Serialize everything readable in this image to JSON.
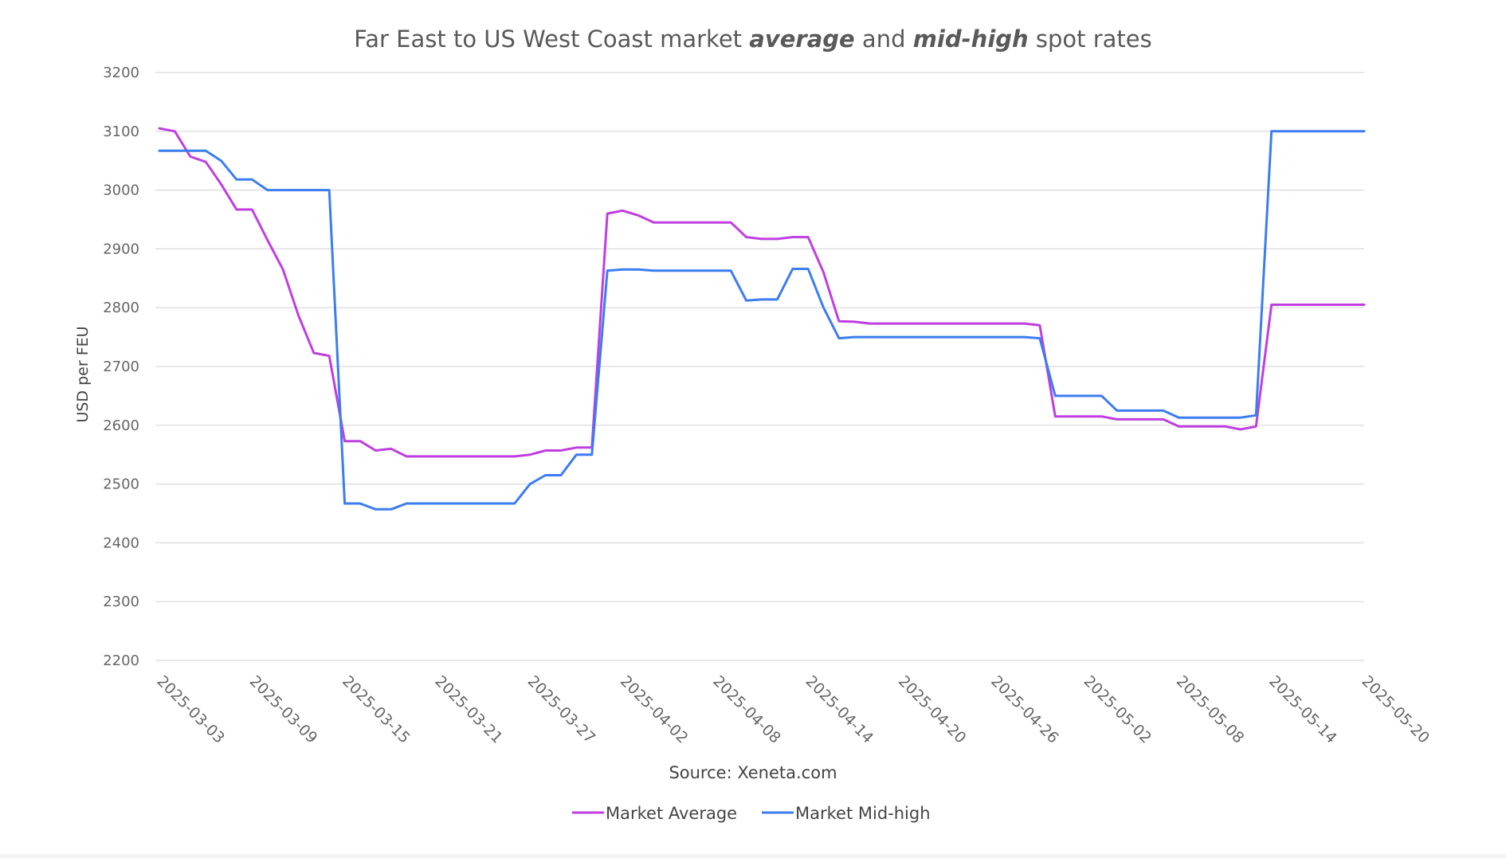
{
  "chart_data": {
    "type": "line",
    "title": {
      "prefix": "Far East to US West Coast market ",
      "emph1": "average",
      "middle": " and ",
      "emph2": "mid-high",
      "suffix": " spot rates"
    },
    "ylabel": "USD per FEU",
    "xlabel": "",
    "source": "Source: Xeneta.com",
    "ylim": [
      2200,
      3200
    ],
    "yticks": [
      2200,
      2300,
      2400,
      2500,
      2600,
      2700,
      2800,
      2900,
      3000,
      3100,
      3200
    ],
    "x_day_range": [
      0,
      78
    ],
    "x_ticks": [
      {
        "day": 0,
        "label": "2025-03-03"
      },
      {
        "day": 6,
        "label": "2025-03-09"
      },
      {
        "day": 12,
        "label": "2025-03-15"
      },
      {
        "day": 18,
        "label": "2025-03-21"
      },
      {
        "day": 24,
        "label": "2025-03-27"
      },
      {
        "day": 30,
        "label": "2025-04-02"
      },
      {
        "day": 36,
        "label": "2025-04-08"
      },
      {
        "day": 42,
        "label": "2025-04-14"
      },
      {
        "day": 48,
        "label": "2025-04-20"
      },
      {
        "day": 54,
        "label": "2025-04-26"
      },
      {
        "day": 60,
        "label": "2025-05-02"
      },
      {
        "day": 66,
        "label": "2025-05-08"
      },
      {
        "day": 72,
        "label": "2025-05-14"
      },
      {
        "day": 78,
        "label": "2025-05-20"
      }
    ],
    "grid": true,
    "legend_position": "bottom",
    "colors": {
      "average": "#c03ee0",
      "midhigh": "#3b7df0",
      "grid": "#d9d9d9",
      "text": "#595959"
    },
    "series": [
      {
        "name": "Market Average",
        "key": "average",
        "points": [
          [
            0,
            3105
          ],
          [
            1,
            3100
          ],
          [
            2,
            3057
          ],
          [
            3,
            3048
          ],
          [
            4,
            3010
          ],
          [
            5,
            2967
          ],
          [
            6,
            2967
          ],
          [
            7,
            2915
          ],
          [
            8,
            2865
          ],
          [
            9,
            2787
          ],
          [
            10,
            2723
          ],
          [
            11,
            2718
          ],
          [
            12,
            2573
          ],
          [
            13,
            2573
          ],
          [
            14,
            2557
          ],
          [
            15,
            2560
          ],
          [
            16,
            2547
          ],
          [
            17,
            2547
          ],
          [
            18,
            2547
          ],
          [
            19,
            2547
          ],
          [
            20,
            2547
          ],
          [
            21,
            2547
          ],
          [
            22,
            2547
          ],
          [
            23,
            2547
          ],
          [
            24,
            2550
          ],
          [
            25,
            2557
          ],
          [
            26,
            2557
          ],
          [
            27,
            2562
          ],
          [
            28,
            2562
          ],
          [
            29,
            2960
          ],
          [
            30,
            2965
          ],
          [
            31,
            2957
          ],
          [
            32,
            2945
          ],
          [
            33,
            2945
          ],
          [
            34,
            2945
          ],
          [
            35,
            2945
          ],
          [
            36,
            2945
          ],
          [
            37,
            2945
          ],
          [
            38,
            2920
          ],
          [
            39,
            2917
          ],
          [
            40,
            2917
          ],
          [
            41,
            2920
          ],
          [
            42,
            2920
          ],
          [
            43,
            2860
          ],
          [
            44,
            2777
          ],
          [
            45,
            2776
          ],
          [
            46,
            2773
          ],
          [
            47,
            2773
          ],
          [
            48,
            2773
          ],
          [
            49,
            2773
          ],
          [
            50,
            2773
          ],
          [
            51,
            2773
          ],
          [
            52,
            2773
          ],
          [
            53,
            2773
          ],
          [
            54,
            2773
          ],
          [
            55,
            2773
          ],
          [
            56,
            2773
          ],
          [
            57,
            2770
          ],
          [
            58,
            2615
          ],
          [
            59,
            2615
          ],
          [
            60,
            2615
          ],
          [
            61,
            2615
          ],
          [
            62,
            2610
          ],
          [
            63,
            2610
          ],
          [
            64,
            2610
          ],
          [
            65,
            2610
          ],
          [
            66,
            2598
          ],
          [
            67,
            2598
          ],
          [
            68,
            2598
          ],
          [
            69,
            2598
          ],
          [
            70,
            2593
          ],
          [
            71,
            2598
          ],
          [
            72,
            2805
          ],
          [
            73,
            2805
          ],
          [
            74,
            2805
          ],
          [
            75,
            2805
          ],
          [
            76,
            2805
          ],
          [
            77,
            2805
          ],
          [
            78,
            2805
          ]
        ]
      },
      {
        "name": "Market Mid-high",
        "key": "midhigh",
        "points": [
          [
            0,
            3067
          ],
          [
            1,
            3067
          ],
          [
            2,
            3067
          ],
          [
            3,
            3067
          ],
          [
            4,
            3050
          ],
          [
            5,
            3018
          ],
          [
            6,
            3018
          ],
          [
            7,
            3000
          ],
          [
            8,
            3000
          ],
          [
            9,
            3000
          ],
          [
            10,
            3000
          ],
          [
            11,
            3000
          ],
          [
            12,
            2467
          ],
          [
            13,
            2467
          ],
          [
            14,
            2457
          ],
          [
            15,
            2457
          ],
          [
            16,
            2467
          ],
          [
            17,
            2467
          ],
          [
            18,
            2467
          ],
          [
            19,
            2467
          ],
          [
            20,
            2467
          ],
          [
            21,
            2467
          ],
          [
            22,
            2467
          ],
          [
            23,
            2467
          ],
          [
            24,
            2500
          ],
          [
            25,
            2515
          ],
          [
            26,
            2515
          ],
          [
            27,
            2550
          ],
          [
            28,
            2550
          ],
          [
            29,
            2863
          ],
          [
            30,
            2865
          ],
          [
            31,
            2865
          ],
          [
            32,
            2863
          ],
          [
            33,
            2863
          ],
          [
            34,
            2863
          ],
          [
            35,
            2863
          ],
          [
            36,
            2863
          ],
          [
            37,
            2863
          ],
          [
            38,
            2812
          ],
          [
            39,
            2814
          ],
          [
            40,
            2814
          ],
          [
            41,
            2866
          ],
          [
            42,
            2866
          ],
          [
            43,
            2800
          ],
          [
            44,
            2748
          ],
          [
            45,
            2750
          ],
          [
            46,
            2750
          ],
          [
            47,
            2750
          ],
          [
            48,
            2750
          ],
          [
            49,
            2750
          ],
          [
            50,
            2750
          ],
          [
            51,
            2750
          ],
          [
            52,
            2750
          ],
          [
            53,
            2750
          ],
          [
            54,
            2750
          ],
          [
            55,
            2750
          ],
          [
            56,
            2750
          ],
          [
            57,
            2748
          ],
          [
            58,
            2650
          ],
          [
            59,
            2650
          ],
          [
            60,
            2650
          ],
          [
            61,
            2650
          ],
          [
            62,
            2625
          ],
          [
            63,
            2625
          ],
          [
            64,
            2625
          ],
          [
            65,
            2625
          ],
          [
            66,
            2613
          ],
          [
            67,
            2613
          ],
          [
            68,
            2613
          ],
          [
            69,
            2613
          ],
          [
            70,
            2613
          ],
          [
            71,
            2617
          ],
          [
            72,
            3100
          ],
          [
            73,
            3100
          ],
          [
            74,
            3100
          ],
          [
            75,
            3100
          ],
          [
            76,
            3100
          ],
          [
            77,
            3100
          ],
          [
            78,
            3100
          ]
        ]
      }
    ]
  }
}
